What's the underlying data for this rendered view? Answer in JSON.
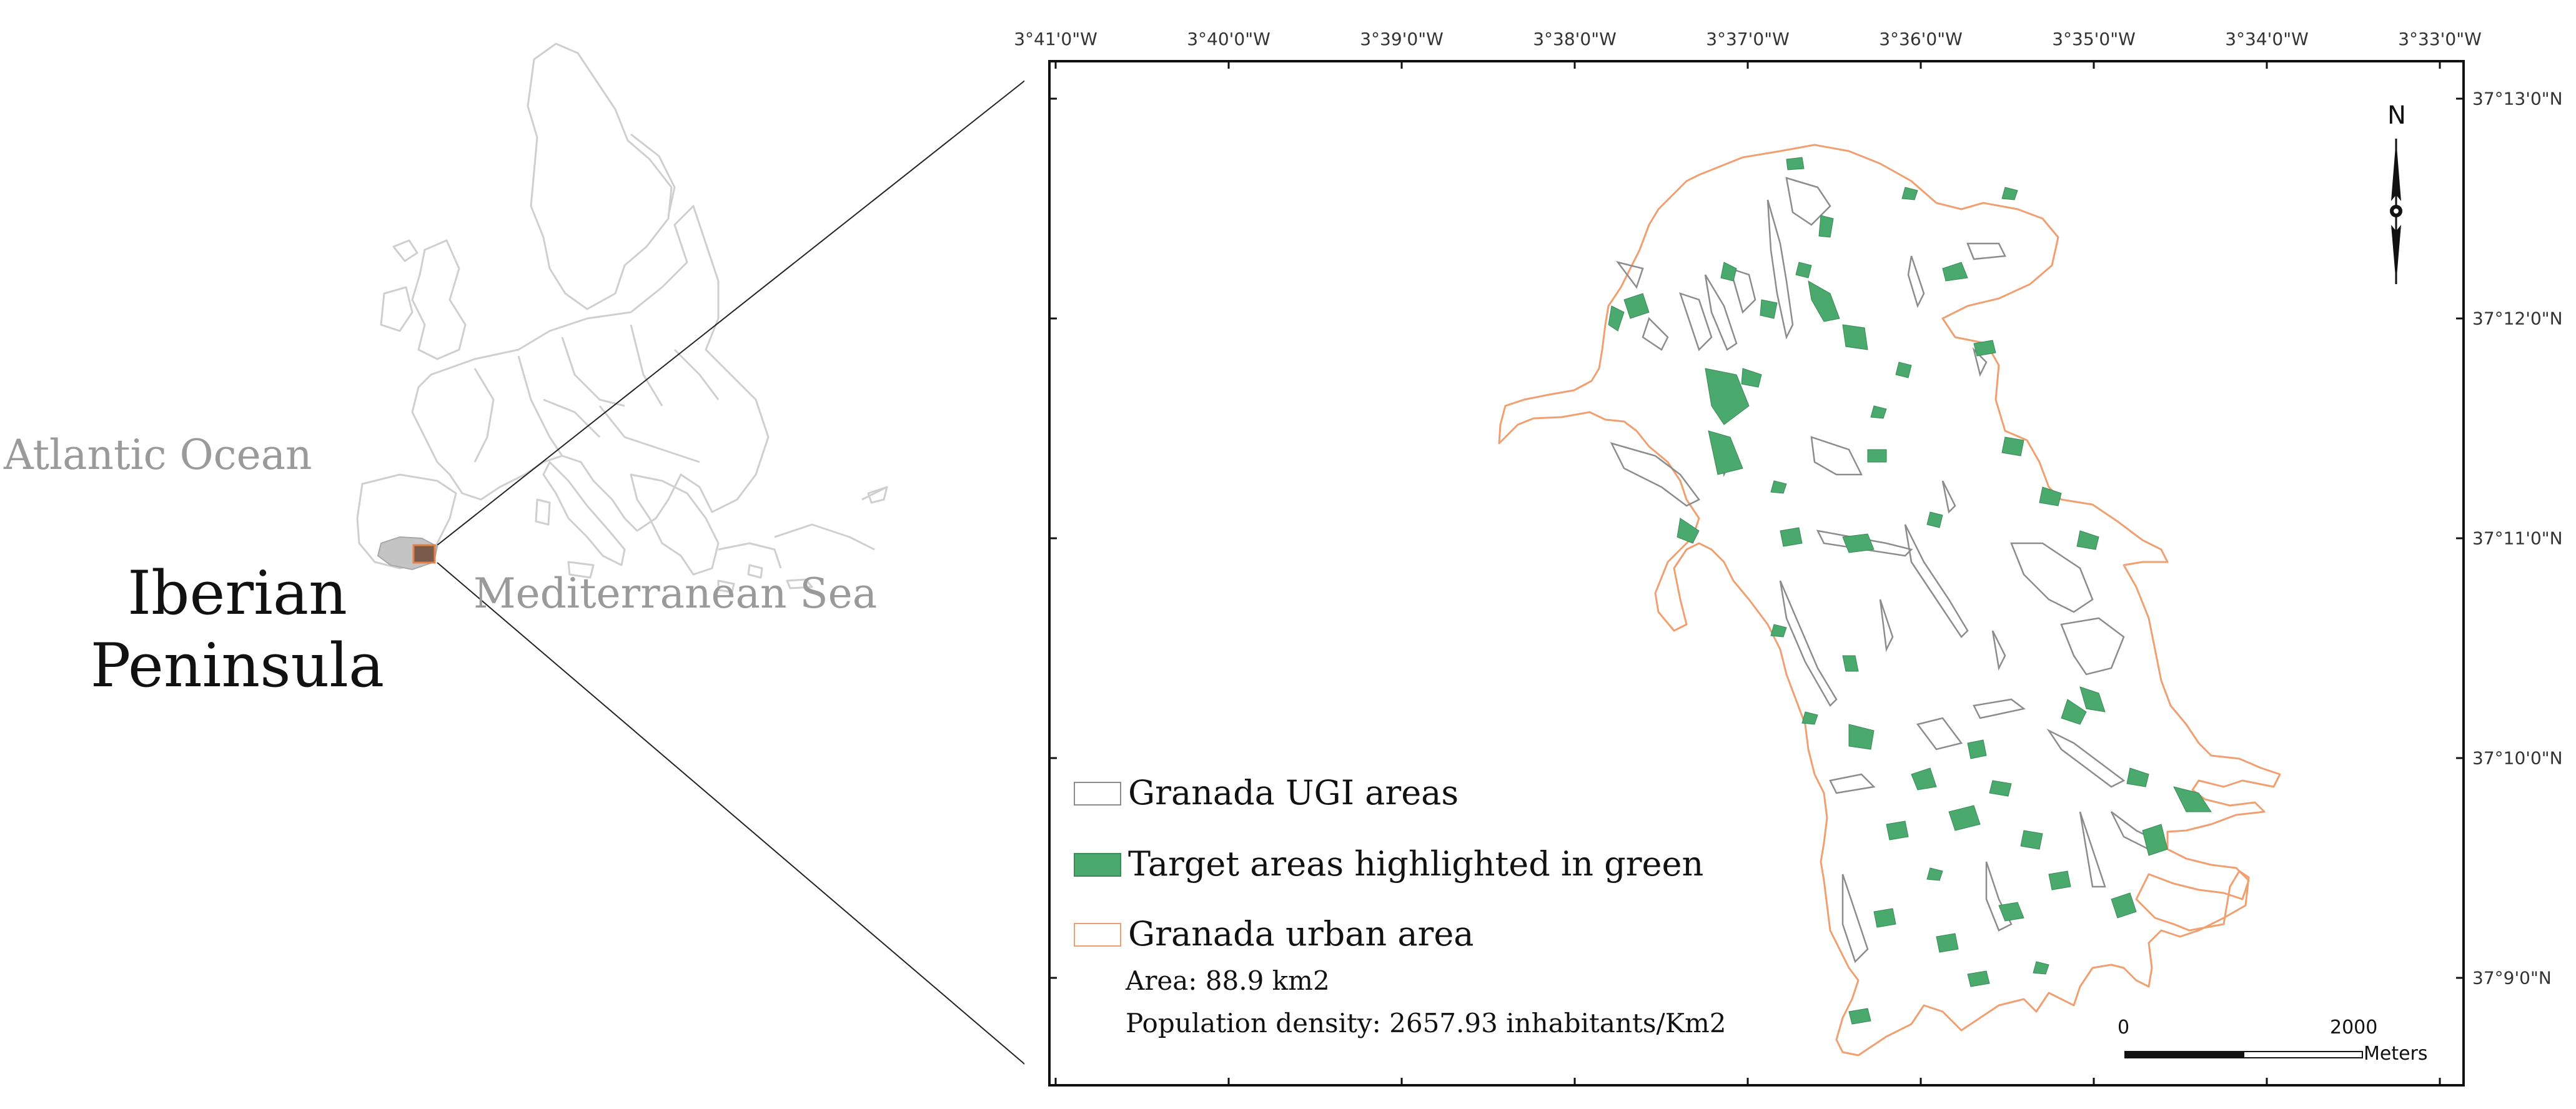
{
  "inset": {
    "ocean_label": "Atlantic Ocean",
    "sea_label": "Mediterranean Sea",
    "peninsula_label_line1": "Iberian",
    "peninsula_label_line2": "Peninsula"
  },
  "map": {
    "longitude_ticks": [
      "3°41'0\"W",
      "3°40'0\"W",
      "3°39'0\"W",
      "3°38'0\"W",
      "3°37'0\"W",
      "3°36'0\"W",
      "3°35'0\"W",
      "3°34'0\"W",
      "3°33'0\"W"
    ],
    "latitude_ticks": [
      "37°13'0\"N",
      "37°12'0\"N",
      "37°11'0\"N",
      "37°10'0\"N",
      "37°9'0\"N"
    ],
    "north_label": "N",
    "scale": {
      "start": "0",
      "end": "2000",
      "unit": "Meters"
    }
  },
  "legend": {
    "ugi_label": "Granada UGI areas",
    "target_label": "Target areas highlighted in green",
    "urban_label": "Granada urban area",
    "area_text": "Area: 88.9 km2",
    "density_text": "Population density: 2657.93 inhabitants/Km2"
  },
  "colors": {
    "target_green": "#4aa96c",
    "urban_outline": "#f0a070",
    "ugi_outline": "#8c8c8c",
    "europe_outline": "#c8c8c8",
    "iberia_fill": "#c4c4c4"
  }
}
